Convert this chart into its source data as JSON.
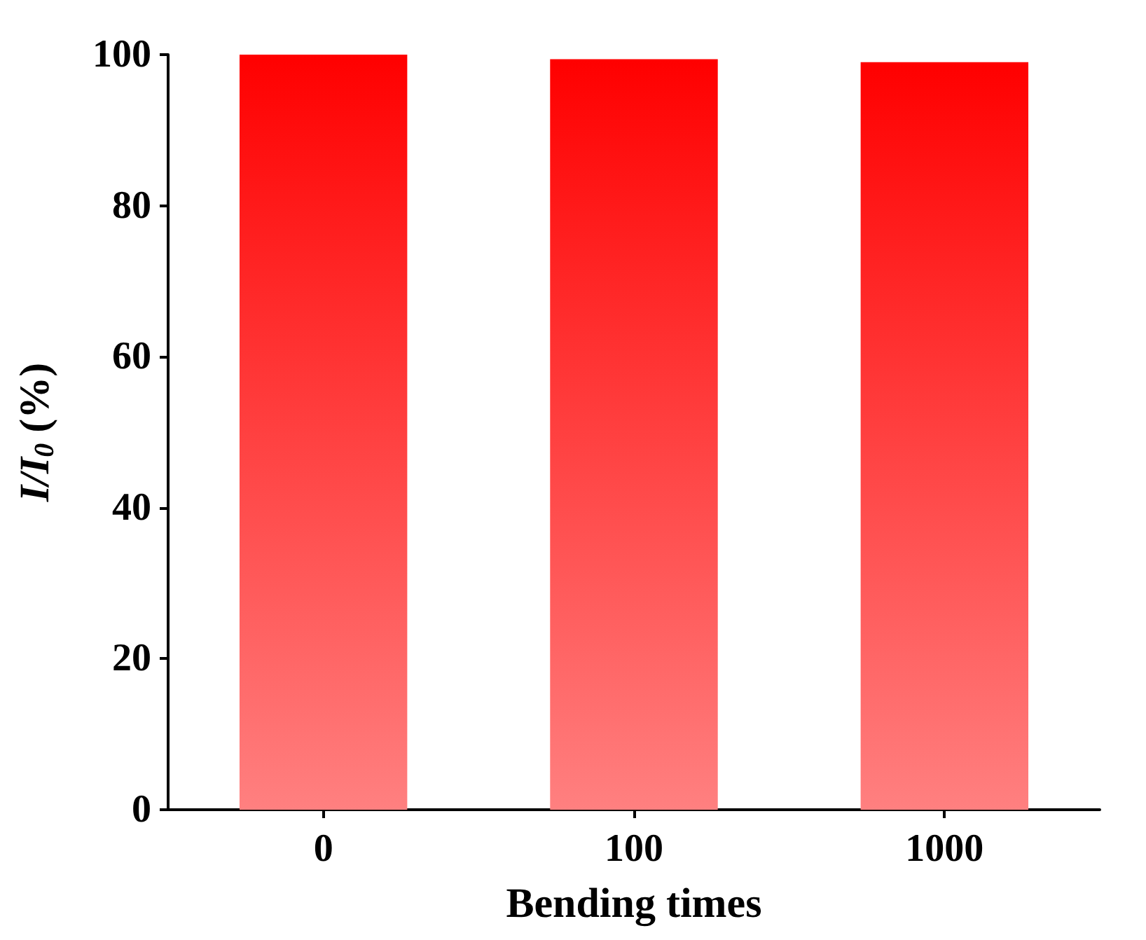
{
  "chart_data": {
    "type": "bar",
    "xlabel": "Bending times",
    "ylabel": "I/I$_{0}$ (%)",
    "categories": [
      "0",
      "100",
      "1000"
    ],
    "values": [
      100,
      99.4,
      99
    ],
    "color": "#ff0000",
    "ylim": [
      0,
      100
    ],
    "yticks": [
      0,
      20,
      40,
      60,
      80,
      100
    ],
    "grid": false
  }
}
